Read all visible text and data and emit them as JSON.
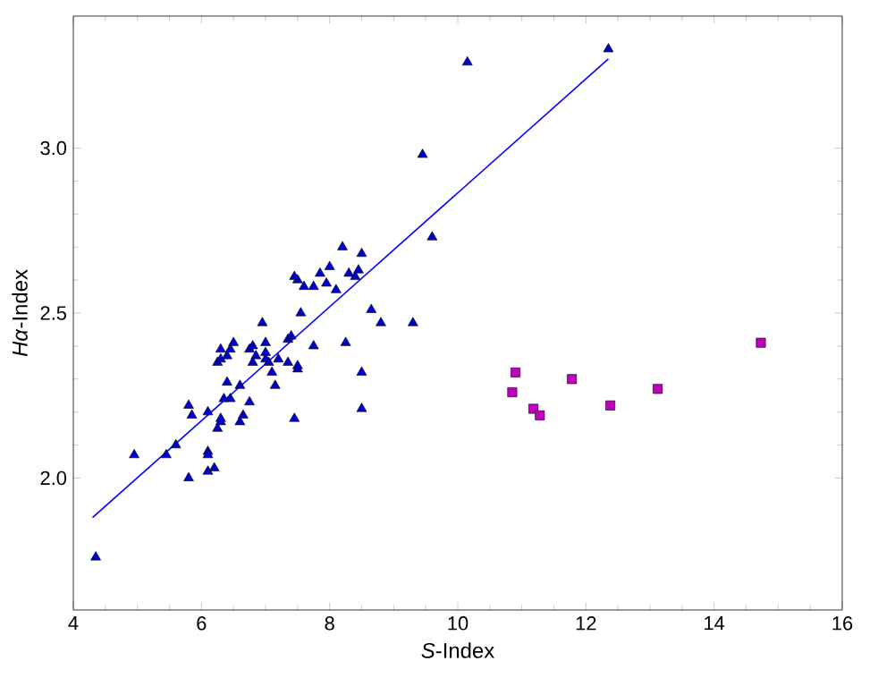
{
  "chart_data": {
    "type": "scatter",
    "xlabel": "*S*-Index",
    "ylabel": "*Hα*-Index",
    "xlim": [
      4,
      16
    ],
    "ylim": [
      1.6,
      3.4
    ],
    "xticks": [
      4,
      6,
      8,
      10,
      12,
      14,
      16
    ],
    "yticks": [
      {
        "value": 2.0,
        "label": "2.0"
      },
      {
        "value": 2.5,
        "label": "2.5"
      },
      {
        "value": 3.0,
        "label": "3.0"
      }
    ],
    "series": [
      {
        "marker": "triangle",
        "color": "#0000cc",
        "x": [
          4.35,
          4.95,
          5.45,
          5.6,
          5.8,
          5.85,
          5.8,
          6.1,
          6.1,
          6.1,
          6.1,
          6.2,
          6.25,
          6.3,
          6.3,
          6.35,
          6.4,
          6.45,
          6.6,
          6.65,
          6.75,
          6.6,
          6.25,
          6.3,
          6.3,
          6.4,
          6.45,
          6.5,
          6.75,
          6.8,
          6.85,
          7.0,
          7.0,
          7.05,
          7.1,
          7.15,
          7.2,
          7.35,
          7.35,
          7.4,
          7.5,
          7.5,
          7.45,
          7.75,
          7.5,
          7.6,
          7.45,
          7.75,
          7.85,
          7.95,
          8.0,
          8.1,
          8.2,
          8.25,
          8.3,
          8.4,
          8.45,
          8.5,
          8.5,
          8.5,
          8.65,
          8.8,
          9.3,
          9.45,
          9.6,
          10.15,
          12.35,
          6.95,
          7.55,
          6.8,
          7.0
        ],
        "values": [
          1.76,
          2.07,
          2.07,
          2.1,
          2.22,
          2.19,
          2.0,
          2.2,
          2.08,
          2.07,
          2.02,
          2.03,
          2.15,
          2.17,
          2.18,
          2.24,
          2.29,
          2.24,
          2.17,
          2.19,
          2.23,
          2.28,
          2.35,
          2.39,
          2.36,
          2.37,
          2.39,
          2.41,
          2.39,
          2.4,
          2.37,
          2.41,
          2.38,
          2.35,
          2.32,
          2.28,
          2.36,
          2.35,
          2.42,
          2.43,
          2.33,
          2.34,
          2.18,
          2.4,
          2.6,
          2.58,
          2.61,
          2.58,
          2.62,
          2.59,
          2.64,
          2.57,
          2.7,
          2.41,
          2.62,
          2.61,
          2.63,
          2.68,
          2.32,
          2.21,
          2.51,
          2.47,
          2.47,
          2.98,
          2.73,
          3.26,
          3.3,
          2.47,
          2.5,
          2.35,
          2.36
        ]
      },
      {
        "marker": "square",
        "color": "#bf00bf",
        "x": [
          10.9,
          10.85,
          11.18,
          11.28,
          11.78,
          12.38,
          13.12,
          14.73
        ],
        "values": [
          2.32,
          2.26,
          2.21,
          2.19,
          2.3,
          2.22,
          2.27,
          2.41
        ]
      },
      {
        "type": "line",
        "marker": "none",
        "color": "#0000ff",
        "x": [
          4.3,
          12.35
        ],
        "values": [
          1.88,
          3.27
        ]
      }
    ]
  }
}
